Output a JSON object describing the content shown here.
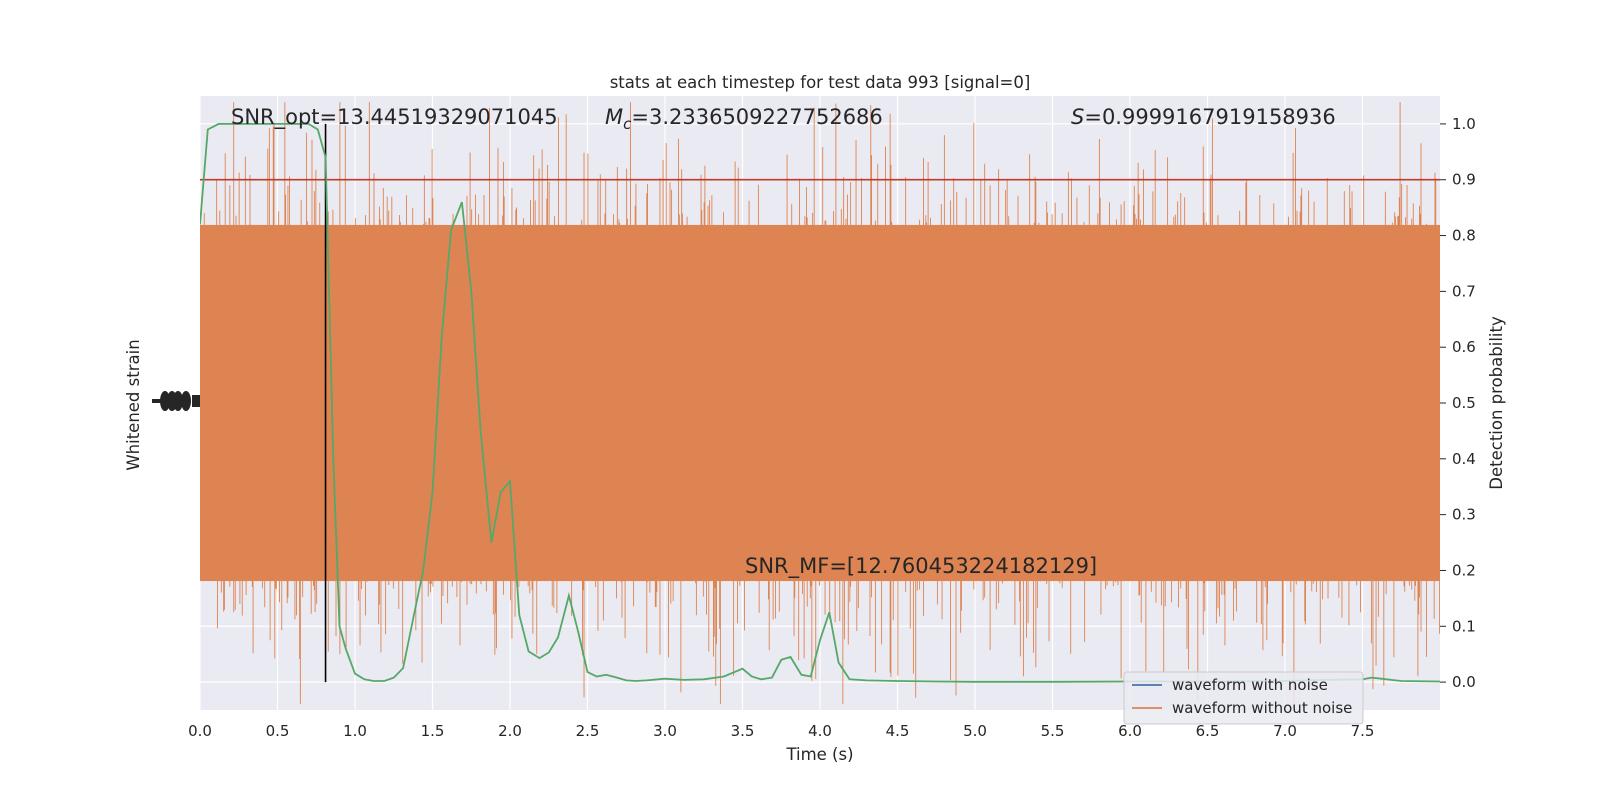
{
  "chart_data": {
    "type": "line",
    "title": "stats at each timestep for test data 993 [signal=0]",
    "xlabel": "Time (s)",
    "ylabel_left": "Whitened strain",
    "ylabel_right": "Detection probability",
    "xlim": [
      0,
      8
    ],
    "ylim_right": [
      -0.05,
      1.05
    ],
    "ylim_left": [
      -1.0,
      1.0
    ],
    "x_ticks": [
      "0.0",
      "0.5",
      "1.0",
      "1.5",
      "2.0",
      "2.5",
      "3.0",
      "3.5",
      "4.0",
      "4.5",
      "5.0",
      "5.5",
      "6.0",
      "6.5",
      "7.0",
      "7.5"
    ],
    "x_tick_values": [
      0,
      0.5,
      1,
      1.5,
      2,
      2.5,
      3,
      3.5,
      4,
      4.5,
      5,
      5.5,
      6,
      6.5,
      7,
      7.5
    ],
    "right_ticks": [
      "0.0",
      "0.1",
      "0.2",
      "0.3",
      "0.4",
      "0.5",
      "0.6",
      "0.7",
      "0.8",
      "0.9",
      "1.0"
    ],
    "right_tick_values": [
      0,
      0.1,
      0.2,
      0.3,
      0.4,
      0.5,
      0.6,
      0.7,
      0.8,
      0.9,
      1.0
    ],
    "grid": true,
    "legend_position": "lower-right",
    "annotations": {
      "snr_opt": "SNR_opt=13.44519329071045",
      "mc_symbol": "M",
      "mc_sub": "c",
      "mc_value": "=3.2336509227752686",
      "s_symbol": "S",
      "s_value": "=0.9999167919158936",
      "snr_mf": "SNR_MF=[12.760453224182129]"
    },
    "threshold": {
      "value": 0.9,
      "color": "#c0392b"
    },
    "marker_time": 0.81,
    "series": [
      {
        "name": "waveform with noise",
        "color": "#4c72b0"
      },
      {
        "name": "waveform without noise",
        "color": "#dd8452"
      }
    ],
    "probability": {
      "color": "#55a868",
      "x": [
        0,
        0.05,
        0.12,
        0.2,
        0.3,
        0.4,
        0.5,
        0.6,
        0.7,
        0.76,
        0.81,
        0.86,
        0.9,
        0.94,
        1.0,
        1.06,
        1.12,
        1.19,
        1.25,
        1.31,
        1.38,
        1.44,
        1.5,
        1.56,
        1.62,
        1.69,
        1.75,
        1.81,
        1.88,
        1.94,
        2.0,
        2.06,
        2.12,
        2.19,
        2.25,
        2.31,
        2.38,
        2.44,
        2.5,
        2.56,
        2.62,
        2.69,
        2.75,
        2.81,
        2.88,
        3.0,
        3.12,
        3.25,
        3.38,
        3.5,
        3.56,
        3.62,
        3.69,
        3.75,
        3.81,
        3.88,
        3.94,
        4.0,
        4.06,
        4.12,
        4.19,
        4.3,
        4.5,
        4.75,
        5.0,
        5.5,
        6.0,
        6.5,
        7.0,
        7.25,
        7.5,
        7.56,
        7.62,
        7.75,
        8.0
      ],
      "y": [
        0.82,
        0.99,
        1.0,
        1.0,
        1.0,
        1.0,
        1.0,
        1.0,
        1.0,
        0.99,
        0.94,
        0.4,
        0.1,
        0.06,
        0.015,
        0.005,
        0.002,
        0.002,
        0.008,
        0.025,
        0.12,
        0.2,
        0.34,
        0.62,
        0.81,
        0.86,
        0.7,
        0.45,
        0.25,
        0.34,
        0.36,
        0.12,
        0.055,
        0.043,
        0.053,
        0.08,
        0.155,
        0.09,
        0.018,
        0.01,
        0.013,
        0.008,
        0.003,
        0.002,
        0.003,
        0.006,
        0.004,
        0.005,
        0.01,
        0.024,
        0.01,
        0.005,
        0.008,
        0.04,
        0.045,
        0.013,
        0.01,
        0.075,
        0.125,
        0.035,
        0.005,
        0.003,
        0.002,
        0.001,
        0.0005,
        0.0005,
        0.001,
        0.001,
        0.002,
        0.004,
        0.005,
        0.008,
        0.006,
        0.002,
        0.001
      ]
    }
  }
}
